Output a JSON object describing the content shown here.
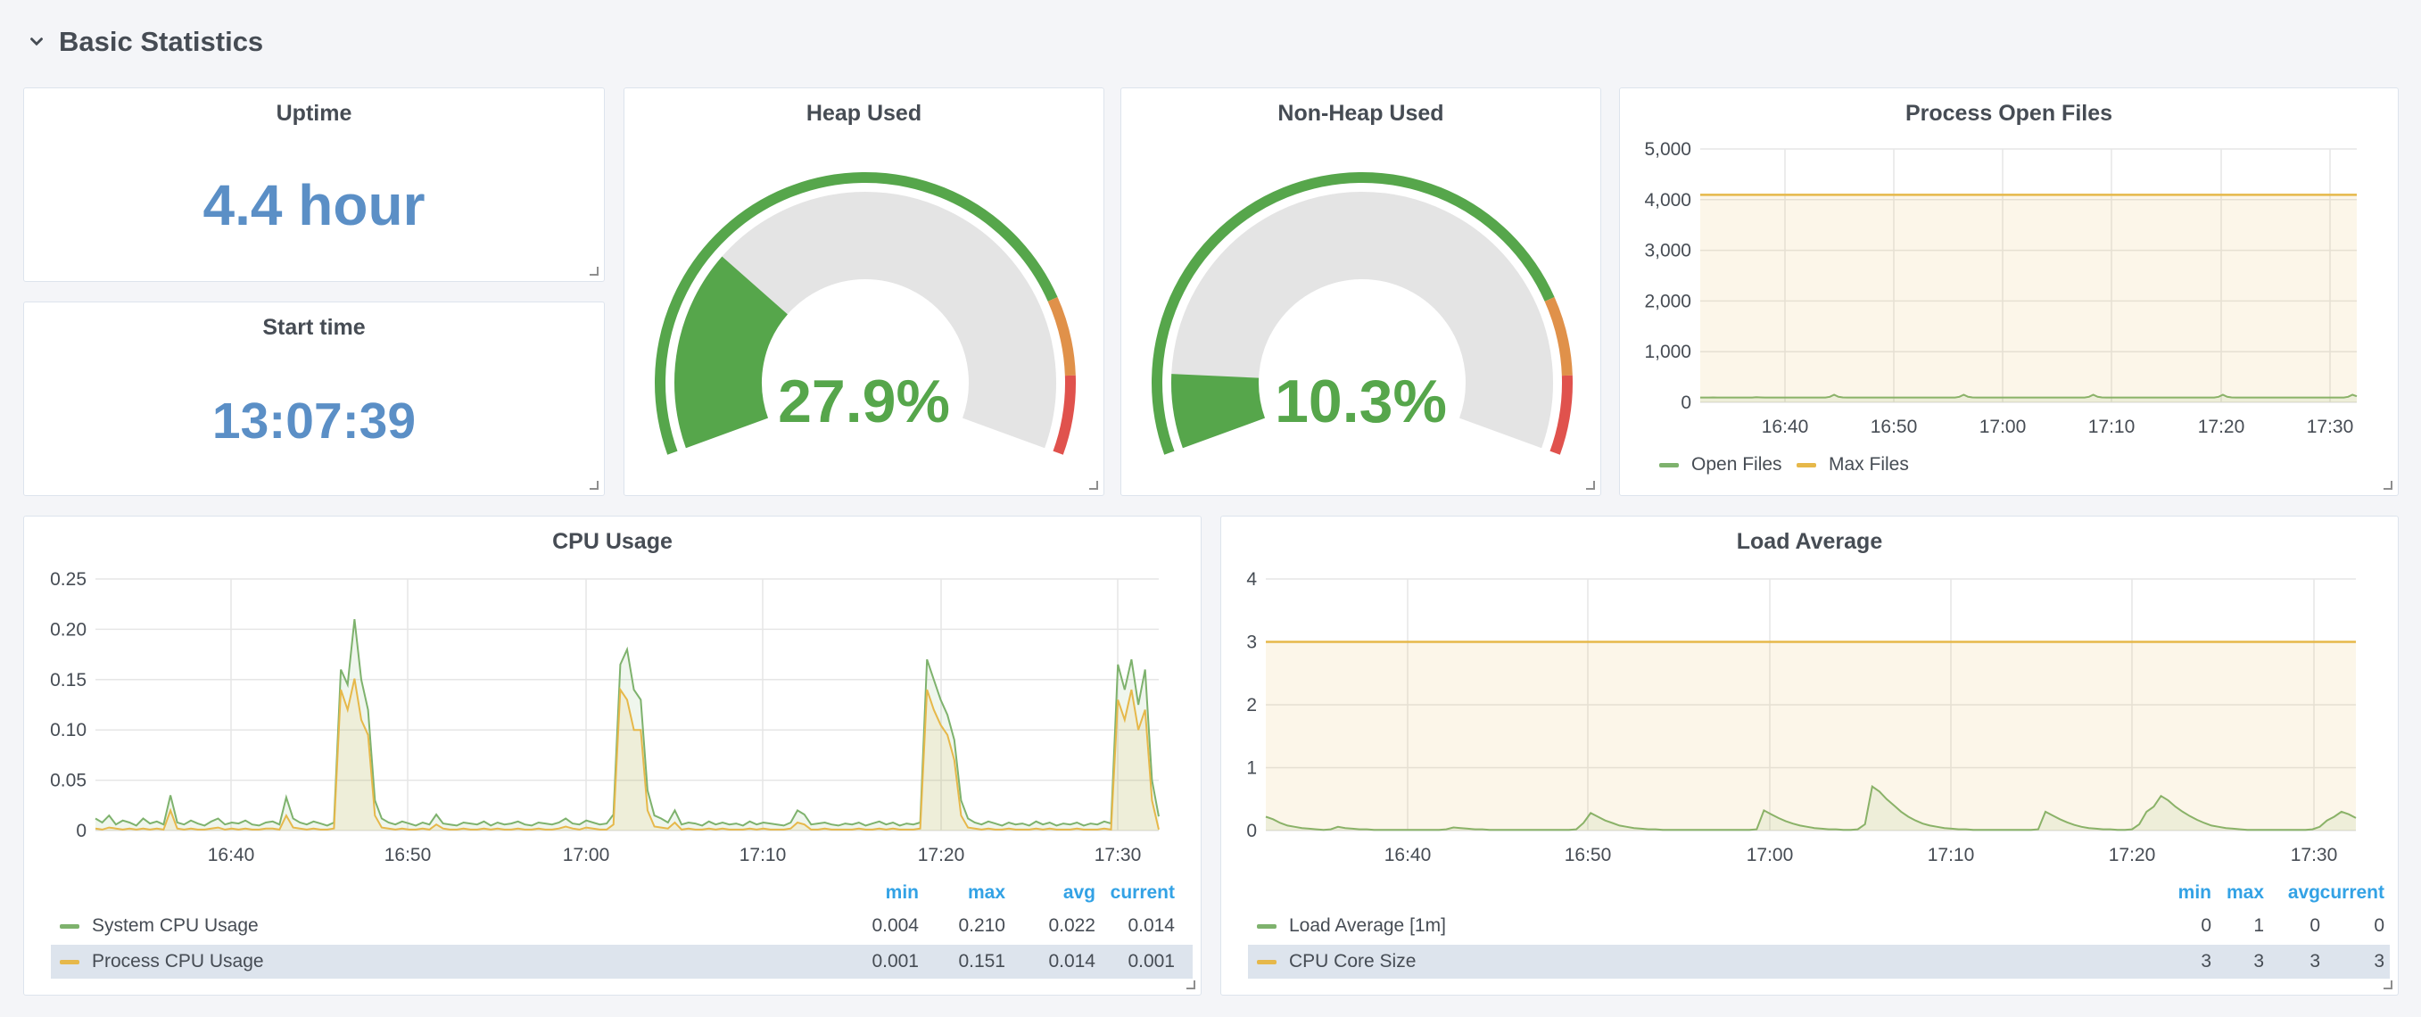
{
  "row": {
    "title": "Basic Statistics",
    "icon": "chevron-down-icon"
  },
  "uptime": {
    "title": "Uptime",
    "value": "4.4 hour"
  },
  "start_time": {
    "title": "Start time",
    "value": "13:07:39"
  },
  "heap": {
    "title": "Heap Used",
    "value": "27.9%",
    "percent": 27.9
  },
  "nonheap": {
    "title": "Non-Heap Used",
    "value": "10.3%",
    "percent": 10.3
  },
  "colors": {
    "green": "#56a64b",
    "yellow": "#e6b84a",
    "orange": "#e0914a",
    "red": "#e0524d",
    "blue": "#5b8fc6",
    "legend_head": "#33a2e5"
  },
  "chart_data": [
    {
      "id": "open_files",
      "type": "line",
      "title": "Process Open Files",
      "x_ticks": [
        "16:40",
        "16:50",
        "17:00",
        "17:10",
        "17:20",
        "17:30"
      ],
      "y_ticks": [
        "0",
        "1,000",
        "2,000",
        "3,000",
        "4,000",
        "5,000"
      ],
      "ylim": [
        0,
        5000
      ],
      "series": [
        {
          "name": "Open Files",
          "color": "#7eb26d",
          "baseline": 95,
          "values": [
            95,
            95,
            95,
            96,
            95,
            95,
            95,
            95,
            95,
            95,
            95,
            95,
            95,
            100,
            96,
            95,
            95,
            95,
            95,
            95,
            95,
            95,
            95,
            95,
            95,
            95,
            95,
            95,
            95,
            95,
            110,
            150,
            110,
            96,
            95,
            95,
            95,
            95,
            95,
            95,
            95,
            95,
            95,
            95,
            95,
            95,
            95,
            95,
            95,
            95,
            95,
            95,
            95,
            95,
            95,
            95,
            95,
            95,
            95,
            95,
            110,
            150,
            110,
            96,
            95,
            95,
            95,
            95,
            95,
            95,
            95,
            95,
            95,
            95,
            95,
            95,
            95,
            95,
            95,
            95,
            95,
            95,
            95,
            95,
            95,
            95,
            95,
            95,
            95,
            95,
            110,
            150,
            110,
            96,
            95,
            95,
            95,
            95,
            95,
            95,
            95,
            95,
            95,
            95,
            95,
            95,
            95,
            95,
            95,
            95,
            95,
            95,
            95,
            95,
            95,
            95,
            95,
            95,
            95,
            95,
            110,
            150,
            110,
            96,
            95,
            95,
            95,
            95,
            95,
            95,
            95,
            95,
            95,
            95,
            95,
            95,
            95,
            95,
            95,
            95,
            95,
            95,
            95,
            95,
            95,
            95,
            95,
            95,
            95,
            95,
            110,
            150,
            120
          ]
        },
        {
          "name": "Max Files",
          "color": "#e6b84a",
          "value": 4096
        }
      ]
    },
    {
      "id": "cpu",
      "type": "line",
      "title": "CPU Usage",
      "x_ticks": [
        "16:40",
        "16:50",
        "17:00",
        "17:10",
        "17:20",
        "17:30"
      ],
      "y_ticks": [
        "0",
        "0.05",
        "0.10",
        "0.15",
        "0.20",
        "0.25"
      ],
      "ylim": [
        0,
        0.25
      ],
      "legend_headers": [
        "min",
        "max",
        "avg",
        "current"
      ],
      "series": [
        {
          "name": "System CPU Usage",
          "color": "#7eb26d",
          "min": "0.004",
          "max": "0.210",
          "avg": "0.022",
          "current": "0.014",
          "values": [
            0.012,
            0.008,
            0.015,
            0.006,
            0.01,
            0.008,
            0.005,
            0.012,
            0.007,
            0.009,
            0.006,
            0.035,
            0.008,
            0.006,
            0.01,
            0.007,
            0.005,
            0.009,
            0.012,
            0.006,
            0.008,
            0.007,
            0.01,
            0.006,
            0.005,
            0.008,
            0.009,
            0.006,
            0.033,
            0.012,
            0.008,
            0.006,
            0.009,
            0.007,
            0.005,
            0.008,
            0.16,
            0.145,
            0.21,
            0.15,
            0.12,
            0.03,
            0.012,
            0.008,
            0.006,
            0.009,
            0.007,
            0.005,
            0.008,
            0.006,
            0.016,
            0.007,
            0.006,
            0.005,
            0.008,
            0.007,
            0.006,
            0.009,
            0.005,
            0.008,
            0.006,
            0.007,
            0.009,
            0.006,
            0.005,
            0.008,
            0.007,
            0.006,
            0.008,
            0.012,
            0.007,
            0.006,
            0.01,
            0.008,
            0.006,
            0.007,
            0.016,
            0.165,
            0.18,
            0.14,
            0.13,
            0.04,
            0.015,
            0.012,
            0.008,
            0.02,
            0.006,
            0.008,
            0.007,
            0.005,
            0.009,
            0.006,
            0.008,
            0.006,
            0.007,
            0.005,
            0.009,
            0.006,
            0.008,
            0.007,
            0.006,
            0.005,
            0.008,
            0.02,
            0.016,
            0.006,
            0.007,
            0.008,
            0.006,
            0.005,
            0.007,
            0.006,
            0.008,
            0.005,
            0.007,
            0.009,
            0.006,
            0.008,
            0.005,
            0.007,
            0.006,
            0.008,
            0.17,
            0.15,
            0.13,
            0.115,
            0.09,
            0.03,
            0.012,
            0.008,
            0.006,
            0.009,
            0.007,
            0.005,
            0.008,
            0.006,
            0.007,
            0.005,
            0.009,
            0.006,
            0.008,
            0.005,
            0.007,
            0.006,
            0.008,
            0.005,
            0.007,
            0.006,
            0.009,
            0.007,
            0.165,
            0.14,
            0.17,
            0.125,
            0.16,
            0.05,
            0.014
          ]
        },
        {
          "name": "Process CPU Usage",
          "color": "#e6b84a",
          "min": "0.001",
          "max": "0.151",
          "avg": "0.014",
          "current": "0.001",
          "values": [
            0.002,
            0.001,
            0.003,
            0.002,
            0.001,
            0.002,
            0.001,
            0.002,
            0.001,
            0.002,
            0.001,
            0.02,
            0.002,
            0.001,
            0.002,
            0.001,
            0.001,
            0.002,
            0.003,
            0.001,
            0.002,
            0.001,
            0.002,
            0.001,
            0.001,
            0.002,
            0.002,
            0.001,
            0.015,
            0.003,
            0.002,
            0.001,
            0.002,
            0.001,
            0.001,
            0.002,
            0.14,
            0.12,
            0.151,
            0.11,
            0.095,
            0.015,
            0.003,
            0.002,
            0.001,
            0.002,
            0.001,
            0.001,
            0.002,
            0.001,
            0.006,
            0.002,
            0.001,
            0.001,
            0.002,
            0.001,
            0.001,
            0.002,
            0.001,
            0.002,
            0.001,
            0.001,
            0.002,
            0.001,
            0.001,
            0.002,
            0.001,
            0.001,
            0.002,
            0.004,
            0.002,
            0.001,
            0.003,
            0.002,
            0.001,
            0.001,
            0.006,
            0.14,
            0.13,
            0.1,
            0.1,
            0.02,
            0.004,
            0.003,
            0.002,
            0.008,
            0.001,
            0.002,
            0.001,
            0.001,
            0.002,
            0.001,
            0.002,
            0.001,
            0.001,
            0.001,
            0.002,
            0.001,
            0.002,
            0.001,
            0.001,
            0.001,
            0.002,
            0.008,
            0.006,
            0.001,
            0.001,
            0.002,
            0.001,
            0.001,
            0.001,
            0.001,
            0.002,
            0.001,
            0.001,
            0.002,
            0.001,
            0.002,
            0.001,
            0.001,
            0.001,
            0.002,
            0.14,
            0.12,
            0.105,
            0.095,
            0.07,
            0.015,
            0.003,
            0.002,
            0.001,
            0.002,
            0.001,
            0.001,
            0.002,
            0.001,
            0.001,
            0.001,
            0.002,
            0.001,
            0.002,
            0.001,
            0.001,
            0.001,
            0.002,
            0.001,
            0.001,
            0.001,
            0.002,
            0.001,
            0.13,
            0.11,
            0.14,
            0.1,
            0.12,
            0.03,
            0.001
          ]
        }
      ]
    },
    {
      "id": "load",
      "type": "line",
      "title": "Load Average",
      "x_ticks": [
        "16:40",
        "16:50",
        "17:00",
        "17:10",
        "17:20",
        "17:30"
      ],
      "y_ticks": [
        "0",
        "1",
        "2",
        "3",
        "4"
      ],
      "ylim": [
        0,
        4
      ],
      "legend_headers": [
        "min",
        "max",
        "avg",
        "current"
      ],
      "series": [
        {
          "name": "Load Average [1m]",
          "color": "#7eb26d",
          "min": "0",
          "max": "1",
          "avg": "0",
          "current": "0",
          "values": [
            0.22,
            0.18,
            0.12,
            0.08,
            0.06,
            0.04,
            0.03,
            0.02,
            0.01,
            0.02,
            0.06,
            0.04,
            0.03,
            0.02,
            0.02,
            0.01,
            0.01,
            0.01,
            0.01,
            0.01,
            0.01,
            0.01,
            0.01,
            0.01,
            0.01,
            0.02,
            0.05,
            0.04,
            0.03,
            0.02,
            0.02,
            0.01,
            0.01,
            0.01,
            0.01,
            0.01,
            0.01,
            0.01,
            0.01,
            0.01,
            0.01,
            0.01,
            0.01,
            0.02,
            0.12,
            0.28,
            0.22,
            0.16,
            0.12,
            0.08,
            0.06,
            0.04,
            0.03,
            0.02,
            0.02,
            0.01,
            0.01,
            0.01,
            0.01,
            0.01,
            0.01,
            0.01,
            0.01,
            0.01,
            0.01,
            0.01,
            0.01,
            0.01,
            0.02,
            0.32,
            0.26,
            0.2,
            0.15,
            0.11,
            0.08,
            0.06,
            0.04,
            0.03,
            0.02,
            0.02,
            0.01,
            0.01,
            0.02,
            0.1,
            0.7,
            0.62,
            0.5,
            0.4,
            0.3,
            0.22,
            0.16,
            0.11,
            0.08,
            0.06,
            0.04,
            0.03,
            0.02,
            0.02,
            0.01,
            0.01,
            0.01,
            0.01,
            0.01,
            0.01,
            0.01,
            0.01,
            0.01,
            0.02,
            0.3,
            0.24,
            0.18,
            0.13,
            0.09,
            0.06,
            0.04,
            0.03,
            0.02,
            0.02,
            0.01,
            0.01,
            0.02,
            0.1,
            0.3,
            0.38,
            0.55,
            0.48,
            0.38,
            0.3,
            0.23,
            0.17,
            0.12,
            0.08,
            0.06,
            0.04,
            0.03,
            0.02,
            0.01,
            0.01,
            0.01,
            0.01,
            0.01,
            0.01,
            0.01,
            0.01,
            0.01,
            0.02,
            0.06,
            0.16,
            0.22,
            0.3,
            0.26,
            0.2
          ]
        },
        {
          "name": "CPU Core Size",
          "color": "#e6b84a",
          "min": "3",
          "max": "3",
          "avg": "3",
          "current": "3",
          "value": 3
        }
      ]
    }
  ]
}
